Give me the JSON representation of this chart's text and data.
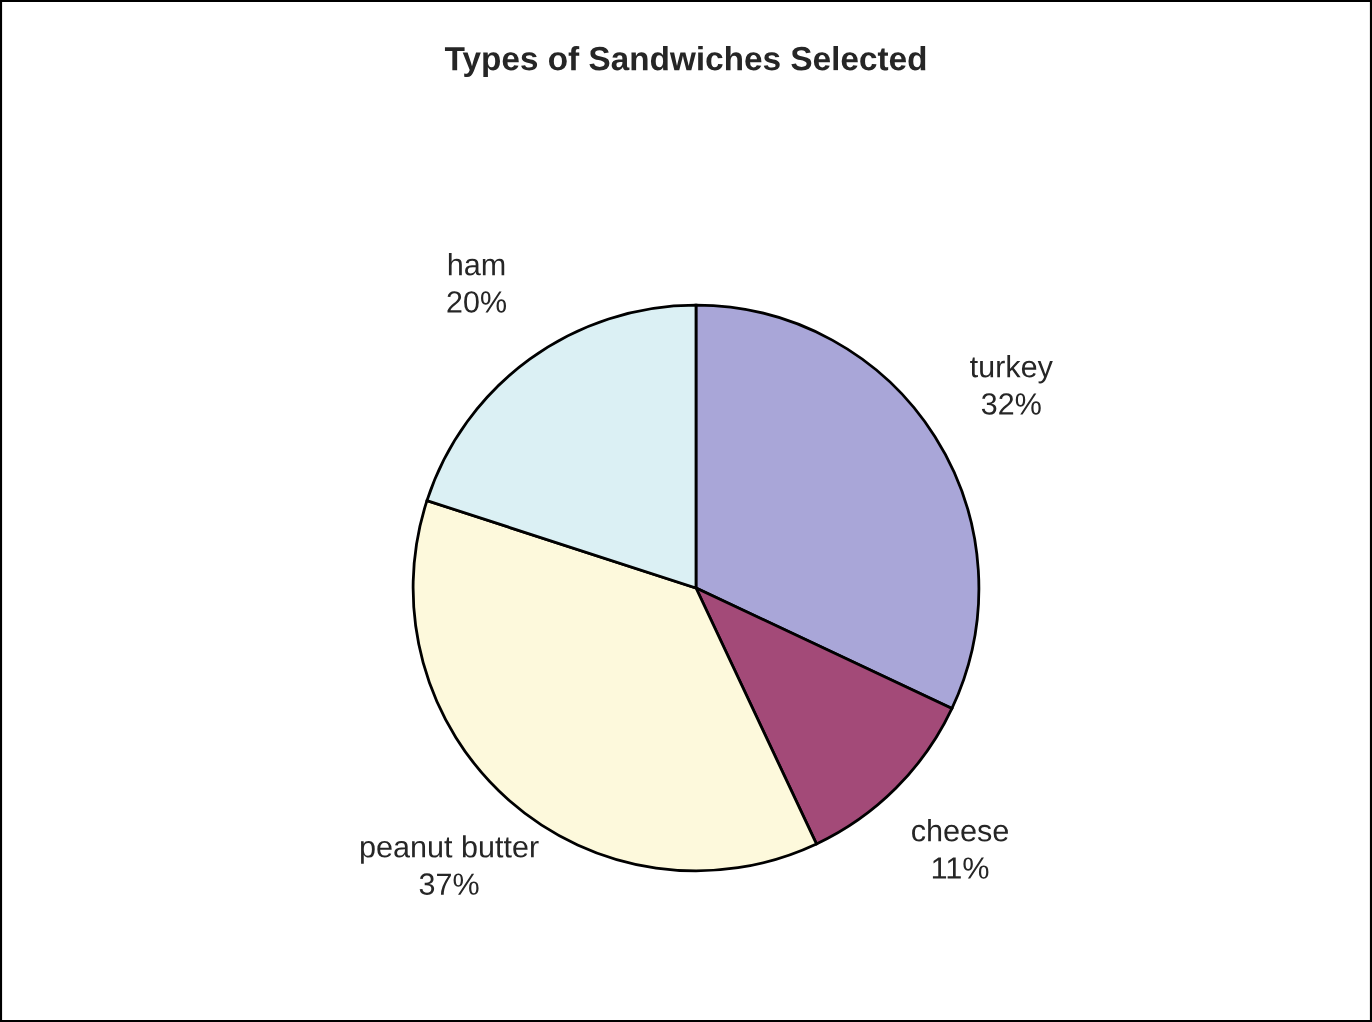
{
  "chart_data": {
    "type": "pie",
    "title": "Types of Sandwiches Selected",
    "categories": [
      "turkey",
      "cheese",
      "peanut butter",
      "ham"
    ],
    "values": [
      32,
      11,
      37,
      20
    ],
    "value_labels": [
      "32%",
      "11%",
      "37%",
      "20%"
    ],
    "colors": [
      "#a9a6d8",
      "#a34a78",
      "#fdf9dc",
      "#dbf0f4"
    ],
    "legend": false
  }
}
